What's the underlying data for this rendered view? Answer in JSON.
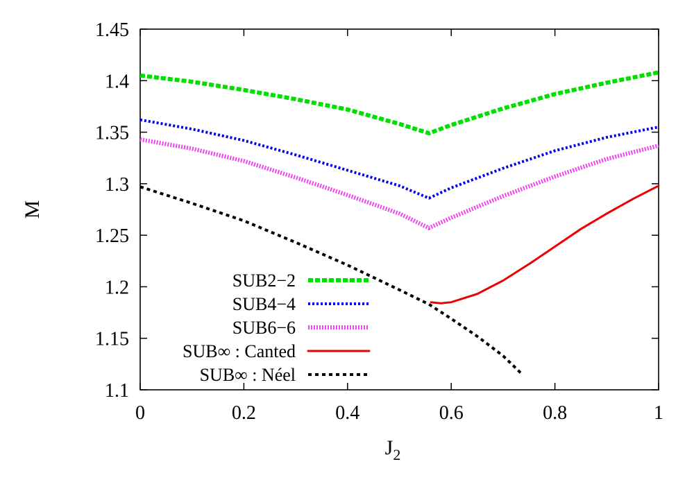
{
  "chart_data": {
    "type": "line",
    "xlabel": "J",
    "xlabel_subscript": "2",
    "ylabel": "M",
    "xlim": [
      0,
      1
    ],
    "ylim": [
      1.1,
      1.45
    ],
    "xticks": [
      "0",
      "0.2",
      "0.4",
      "0.6",
      "0.8",
      "1"
    ],
    "yticks": [
      "1.1",
      "1.15",
      "1.2",
      "1.25",
      "1.3",
      "1.35",
      "1.4",
      "1.45"
    ],
    "grid": false,
    "legend_position": "bottom-center",
    "series": [
      {
        "name": "SUB2−2",
        "color": "#00e000",
        "style": "dashed-thick",
        "x": [
          0,
          0.1,
          0.2,
          0.3,
          0.4,
          0.5,
          0.557,
          0.6,
          0.7,
          0.8,
          0.9,
          1.0
        ],
        "y": [
          1.405,
          1.399,
          1.391,
          1.382,
          1.372,
          1.358,
          1.349,
          1.357,
          1.373,
          1.387,
          1.398,
          1.408
        ]
      },
      {
        "name": "SUB4−4",
        "color": "#0000ee",
        "style": "dotted",
        "x": [
          0,
          0.1,
          0.2,
          0.3,
          0.4,
          0.5,
          0.557,
          0.6,
          0.7,
          0.8,
          0.9,
          1.0
        ],
        "y": [
          1.362,
          1.353,
          1.342,
          1.328,
          1.313,
          1.298,
          1.286,
          1.296,
          1.315,
          1.332,
          1.345,
          1.355
        ]
      },
      {
        "name": "SUB6−6",
        "color": "#ee44ee",
        "style": "dotted-thick",
        "x": [
          0,
          0.1,
          0.2,
          0.3,
          0.4,
          0.5,
          0.557,
          0.6,
          0.7,
          0.8,
          0.9,
          1.0
        ],
        "y": [
          1.343,
          1.334,
          1.322,
          1.306,
          1.289,
          1.271,
          1.257,
          1.267,
          1.288,
          1.307,
          1.324,
          1.337
        ]
      },
      {
        "name": "SUB∞ : Canted",
        "color": "#ee0000",
        "style": "solid",
        "x": [
          0.561,
          0.57,
          0.58,
          0.6,
          0.65,
          0.7,
          0.75,
          0.8,
          0.85,
          0.9,
          0.95,
          1.0
        ],
        "y": [
          1.185,
          1.1845,
          1.184,
          1.185,
          1.193,
          1.206,
          1.222,
          1.239,
          1.256,
          1.271,
          1.285,
          1.298
        ]
      },
      {
        "name": "SUB∞ : Néel",
        "color": "#000000",
        "style": "dashed",
        "x": [
          0,
          0.1,
          0.2,
          0.3,
          0.4,
          0.5,
          0.557,
          0.6,
          0.65,
          0.7,
          0.737
        ],
        "y": [
          1.297,
          1.281,
          1.264,
          1.243,
          1.221,
          1.197,
          1.183,
          1.169,
          1.152,
          1.133,
          1.115
        ]
      }
    ]
  }
}
